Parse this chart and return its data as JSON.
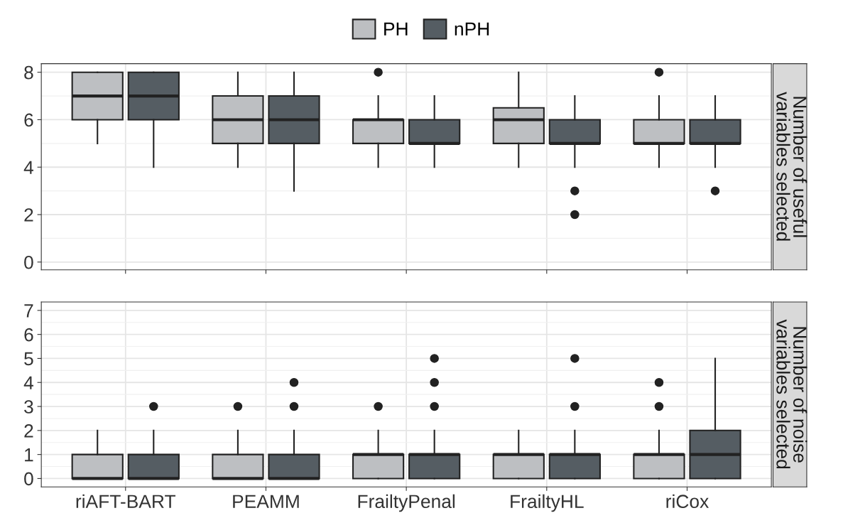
{
  "chart_data": [
    {
      "type": "box",
      "title": "Number of useful\nvariables selected",
      "categories": [
        null,
        null,
        null,
        null,
        null
      ],
      "ylim": [
        -0.33,
        8.36
      ],
      "yticks": [
        0,
        2,
        4,
        6,
        8
      ],
      "grid": true,
      "legend": "top",
      "tick_labels": "y",
      "series": [
        {
          "name": "PH",
          "color": "#bdbfc2",
          "boxes": [
            {
              "low": 5,
              "q1": 6,
              "median": 7,
              "q3": 8,
              "high": 8
            },
            {
              "low": 4,
              "q1": 5,
              "median": 6,
              "q3": 7,
              "high": 8
            },
            {
              "low": 4,
              "q1": 5,
              "median": 6,
              "q3": 6,
              "high": 7,
              "outliers": [
                8
              ]
            },
            {
              "low": 4,
              "q1": 5,
              "median": 6,
              "q3": 6.5,
              "high": 8
            },
            {
              "low": 4,
              "q1": 5,
              "median": 5,
              "q3": 6,
              "high": 7,
              "outliers": [
                8
              ]
            }
          ]
        },
        {
          "name": "nPH",
          "color": "#555d63",
          "boxes": [
            {
              "low": 4,
              "q1": 6,
              "median": 7,
              "q3": 8,
              "high": 8
            },
            {
              "low": 3,
              "q1": 5,
              "median": 6,
              "q3": 7,
              "high": 8
            },
            {
              "low": 4,
              "q1": 5,
              "median": 5,
              "q3": 6,
              "high": 7
            },
            {
              "low": 4,
              "q1": 5,
              "median": 5,
              "q3": 6,
              "high": 7,
              "outliers": [
                3,
                2
              ]
            },
            {
              "low": 4,
              "q1": 5,
              "median": 5,
              "q3": 6,
              "high": 7,
              "outliers": [
                3
              ]
            }
          ]
        }
      ]
    },
    {
      "type": "box",
      "title": "Number of noise\nvariables selected",
      "categories": [
        "riAFT-BART",
        "PEAMM",
        "FrailtyPenal",
        "FrailtyHL",
        "riCox"
      ],
      "ylim": [
        -0.35,
        7.35
      ],
      "yticks": [
        0,
        1,
        2,
        3,
        4,
        5,
        6,
        7
      ],
      "grid": true,
      "series": [
        {
          "color": "#bdbfc2",
          "boxes": [
            {
              "low": 0,
              "q1": 0,
              "median": 0,
              "q3": 1,
              "high": 2
            },
            {
              "low": 0,
              "q1": 0,
              "median": 0,
              "q3": 1,
              "high": 2,
              "outliers": [
                3
              ]
            },
            {
              "low": 0,
              "q1": 0,
              "median": 1,
              "q3": 1,
              "high": 2,
              "outliers": [
                3
              ]
            },
            {
              "low": 0,
              "q1": 0,
              "median": 1,
              "q3": 1,
              "high": 2
            },
            {
              "low": 0,
              "q1": 0,
              "median": 1,
              "q3": 1,
              "high": 2,
              "outliers": [
                3,
                4
              ]
            }
          ]
        },
        {
          "color": "#555d63",
          "boxes": [
            {
              "low": 0,
              "q1": 0,
              "median": 0,
              "q3": 1,
              "high": 2,
              "outliers": [
                3
              ]
            },
            {
              "low": 0,
              "q1": 0,
              "median": 0,
              "q3": 1,
              "high": 2,
              "outliers": [
                3,
                4
              ]
            },
            {
              "low": 0,
              "q1": 0,
              "median": 1,
              "q3": 1,
              "high": 2,
              "outliers": [
                3,
                4,
                5
              ]
            },
            {
              "low": 0,
              "q1": 0,
              "median": 1,
              "q3": 1,
              "high": 2,
              "outliers": [
                3,
                5
              ]
            },
            {
              "low": 0,
              "q1": 0,
              "median": 1,
              "q3": 2,
              "high": 5
            }
          ]
        }
      ]
    }
  ]
}
